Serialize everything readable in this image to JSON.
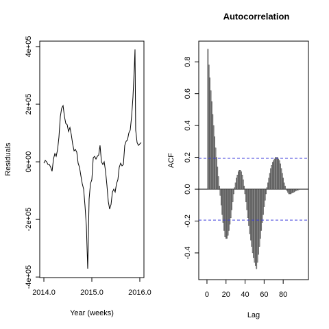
{
  "chart_data": [
    {
      "type": "line",
      "color": "#000000",
      "xlabel": "Year (weeks)",
      "ylabel": "Residuals",
      "x": [
        2014.0,
        2014.029,
        2014.057,
        2014.086,
        2014.114,
        2014.143,
        2014.171,
        2014.2,
        2014.229,
        2014.257,
        2014.286,
        2014.314,
        2014.343,
        2014.371,
        2014.4,
        2014.429,
        2014.457,
        2014.486,
        2014.514,
        2014.543,
        2014.571,
        2014.6,
        2014.629,
        2014.657,
        2014.686,
        2014.714,
        2014.743,
        2014.771,
        2014.8,
        2014.829,
        2014.857,
        2014.886,
        2014.914,
        2014.943,
        2014.971,
        2015.0,
        2015.029,
        2015.057,
        2015.086,
        2015.114,
        2015.143,
        2015.171,
        2015.2,
        2015.229,
        2015.257,
        2015.286,
        2015.314,
        2015.343,
        2015.371,
        2015.4,
        2015.429,
        2015.457,
        2015.486,
        2015.514,
        2015.543,
        2015.571,
        2015.6,
        2015.629,
        2015.657,
        2015.686,
        2015.714,
        2015.743,
        2015.771,
        2015.8,
        2015.829,
        2015.857,
        2015.886,
        2015.9,
        2015.914,
        2015.943,
        2015.971,
        2016.0,
        2016.029
      ],
      "values": [
        -4800,
        4800,
        0,
        -9500,
        -9500,
        -19000,
        -33000,
        9500,
        28600,
        19000,
        42900,
        85700,
        157000,
        186000,
        195000,
        157000,
        133000,
        129000,
        105000,
        119000,
        95000,
        62000,
        38000,
        43000,
        33000,
        -4800,
        -19000,
        -48000,
        -76000,
        -95000,
        -152000,
        -224000,
        -371000,
        -129000,
        -76000,
        -62000,
        14000,
        19000,
        9500,
        19000,
        24000,
        57000,
        0,
        -9500,
        0,
        -33000,
        -81000,
        -138000,
        -164000,
        -148000,
        -105000,
        -95000,
        -105000,
        -76000,
        -62000,
        -19000,
        -4800,
        -14000,
        -9500,
        57000,
        71000,
        76000,
        100000,
        110000,
        157000,
        224000,
        329000,
        390000,
        110000,
        67000,
        57000,
        62000,
        67000
      ],
      "xlim": [
        2013.914,
        2016.086
      ],
      "ylim": [
        -402000,
        419000
      ],
      "xticks": [
        {
          "value": 2014,
          "label": "2014.0"
        },
        {
          "value": 2015,
          "label": "2015.0"
        },
        {
          "value": 2016,
          "label": "2016.0"
        }
      ],
      "yticks": [
        {
          "value": -400000,
          "label": "-4e+05"
        },
        {
          "value": -200000,
          "label": "-2e+05"
        },
        {
          "value": 0,
          "label": "0e+00"
        },
        {
          "value": 200000,
          "label": "2e+05"
        },
        {
          "value": 400000,
          "label": "4e+05"
        }
      ]
    },
    {
      "type": "bar",
      "title": "Autocorrelation",
      "xlabel": "Lag",
      "ylabel": "ACF",
      "color": "#888888",
      "significance_lines": [
        0.194,
        -0.194
      ],
      "significance_color": "#3b3bdb",
      "x": [
        1,
        2,
        3,
        4,
        5,
        6,
        7,
        8,
        9,
        10,
        11,
        12,
        13,
        14,
        15,
        16,
        17,
        18,
        19,
        20,
        21,
        22,
        23,
        24,
        25,
        26,
        27,
        28,
        29,
        30,
        31,
        32,
        33,
        34,
        35,
        36,
        37,
        38,
        39,
        40,
        41,
        42,
        43,
        44,
        45,
        46,
        47,
        48,
        49,
        50,
        51,
        52,
        53,
        54,
        55,
        56,
        57,
        58,
        59,
        60,
        61,
        62,
        63,
        64,
        65,
        66,
        67,
        68,
        69,
        70,
        71,
        72,
        73,
        74,
        75,
        76,
        77,
        78,
        79,
        80,
        81,
        82,
        83,
        84,
        85,
        86,
        87,
        88,
        89,
        90,
        91,
        92,
        93,
        94,
        95,
        96,
        97,
        98,
        99
      ],
      "values": [
        0.88,
        0.78,
        0.7,
        0.62,
        0.55,
        0.47,
        0.4,
        0.33,
        0.26,
        0.2,
        0.14,
        0.08,
        0.02,
        -0.04,
        -0.1,
        -0.16,
        -0.21,
        -0.26,
        -0.3,
        -0.31,
        -0.31,
        -0.29,
        -0.26,
        -0.22,
        -0.18,
        -0.13,
        -0.08,
        -0.03,
        0.01,
        0.04,
        0.07,
        0.09,
        0.11,
        0.12,
        0.12,
        0.11,
        0.09,
        0.06,
        0.02,
        -0.03,
        -0.08,
        -0.13,
        -0.18,
        -0.23,
        -0.28,
        -0.32,
        -0.36,
        -0.4,
        -0.43,
        -0.46,
        -0.48,
        -0.5,
        -0.46,
        -0.41,
        -0.36,
        -0.31,
        -0.26,
        -0.21,
        -0.16,
        -0.11,
        -0.07,
        -0.03,
        0.01,
        0.04,
        0.07,
        0.1,
        0.13,
        0.15,
        0.17,
        0.18,
        0.19,
        0.2,
        0.2,
        0.2,
        0.19,
        0.18,
        0.16,
        0.13,
        0.1,
        0.07,
        0.04,
        0.02,
        0,
        -0.01,
        -0.02,
        -0.03,
        -0.03,
        -0.03,
        -0.025,
        -0.02,
        -0.02,
        -0.015,
        -0.01,
        -0.01,
        -0.005,
        -0.005,
        0,
        0,
        0
      ],
      "xlim": [
        -8.6,
        106.5
      ],
      "ylim": [
        -0.568,
        0.93
      ],
      "xticks": [
        0,
        20,
        40,
        60,
        80
      ],
      "yticks": [
        -0.4,
        -0.2,
        {
          "value": 0,
          "label": "0.0"
        },
        0.2,
        0.4,
        0.6,
        0.8
      ]
    }
  ]
}
